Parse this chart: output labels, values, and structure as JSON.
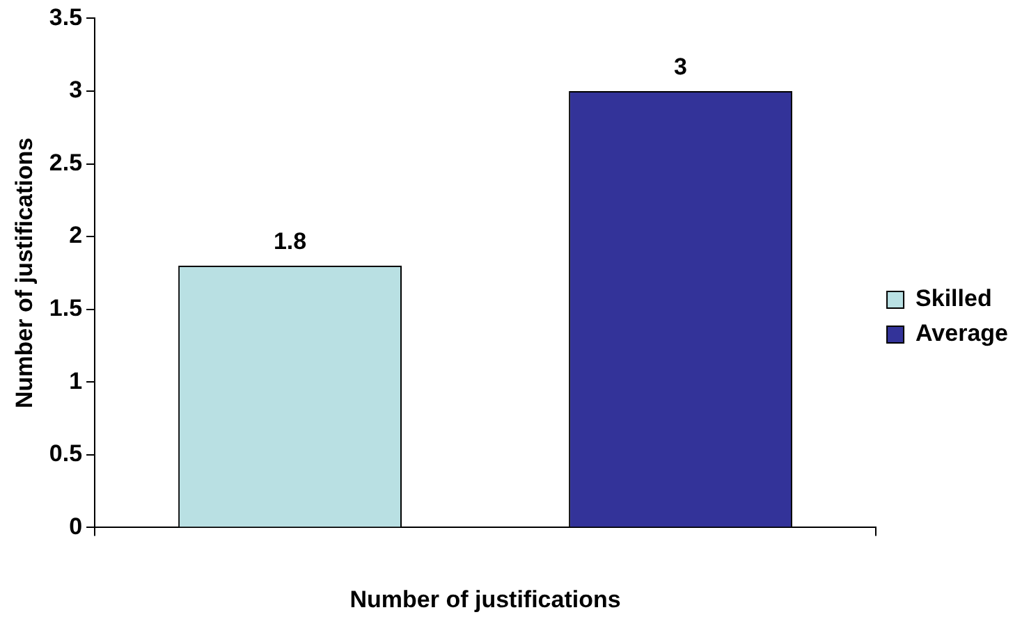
{
  "chart_data": {
    "type": "bar",
    "xlabel": "Number of justifications",
    "ylabel": "Number of justifications",
    "categories": [
      null
    ],
    "series": [
      {
        "name": "Skilled",
        "color": "#b9e0e3",
        "values": [
          1.8
        ]
      },
      {
        "name": "Average",
        "color": "#333399",
        "values": [
          3
        ]
      }
    ],
    "ylim": [
      0,
      3.5
    ],
    "yticks": [
      0,
      0.5,
      1,
      1.5,
      2,
      2.5,
      3,
      3.5
    ],
    "grid": false,
    "legend": "right",
    "data_labels": true
  }
}
